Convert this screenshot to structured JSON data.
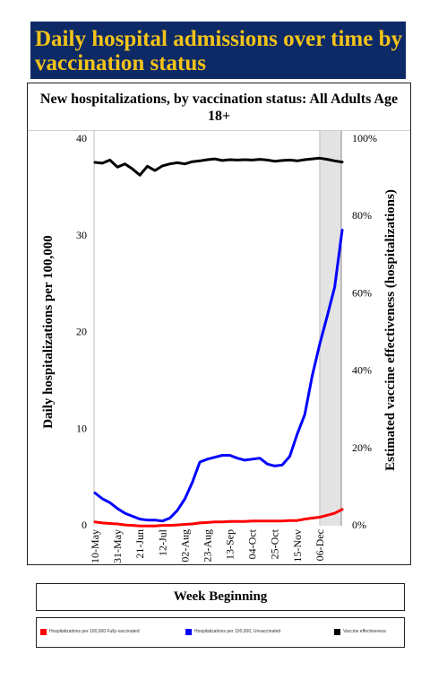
{
  "header": {
    "title": "Daily hospital admissions over time by vaccination status"
  },
  "chart_data": {
    "type": "line",
    "title": "New hospitalizations, by vaccination status: All Adults Age 18+",
    "xlabel": "Week Beginning",
    "ylabel": "Daily hospitalizations per 100,000",
    "ylabel_right": "Estimated vaccine effectiveness (hospitalizations)",
    "ylim": [
      0,
      40
    ],
    "yticks": [
      "0",
      "10",
      "20",
      "30",
      "40"
    ],
    "ylim_right": [
      0,
      100
    ],
    "yticks_right": [
      "0%",
      "20%",
      "40%",
      "60%",
      "80%",
      "100%"
    ],
    "x_tick_labels": [
      "10-May",
      "31-May",
      "21-Jun",
      "12-Jul",
      "02-Aug",
      "23-Aug",
      "13-Sep",
      "04-Oct",
      "25-Oct",
      "15-Nov",
      "06-Dec"
    ],
    "x_weeks": 34,
    "shaded_from_week": 30,
    "series": [
      {
        "name": "Hospitalizations per 100,000  Fully-vaccinated",
        "color": "#ff0000",
        "axis": "left",
        "values": [
          0.2,
          0.1,
          0.05,
          0.0,
          -0.1,
          -0.15,
          -0.2,
          -0.2,
          -0.2,
          -0.15,
          -0.15,
          -0.1,
          -0.05,
          0.0,
          0.1,
          0.15,
          0.2,
          0.2,
          0.25,
          0.25,
          0.25,
          0.3,
          0.3,
          0.3,
          0.3,
          0.3,
          0.35,
          0.35,
          0.5,
          0.6,
          0.7,
          0.9,
          1.1,
          1.5
        ]
      },
      {
        "name": "Hospitalizations per 100,000, Unvaccinated",
        "color": "#0000ff",
        "axis": "left",
        "values": [
          3.2,
          2.6,
          2.2,
          1.6,
          1.1,
          0.8,
          0.5,
          0.4,
          0.4,
          0.3,
          0.6,
          1.4,
          2.6,
          4.3,
          6.4,
          6.7,
          6.9,
          7.1,
          7.1,
          6.8,
          6.6,
          6.7,
          6.8,
          6.2,
          6.0,
          6.1,
          7.0,
          9.3,
          11.3,
          15.3,
          18.6,
          21.5,
          24.5,
          30.4
        ]
      },
      {
        "name": "Vaccine effectiveness",
        "color": "#000000",
        "axis": "right",
        "values": [
          93.5,
          93.3,
          94.1,
          92.3,
          93.1,
          91.8,
          90.2,
          92.5,
          91.4,
          92.6,
          93.1,
          93.4,
          93.1,
          93.7,
          93.9,
          94.2,
          94.4,
          94.0,
          94.2,
          94.1,
          94.2,
          94.1,
          94.3,
          94.1,
          93.8,
          94.0,
          94.1,
          93.9,
          94.2,
          94.4,
          94.6,
          94.3,
          93.9,
          93.6
        ]
      }
    ],
    "legend": [
      {
        "label": "Hospitalizations per 100,000  Fully-vaccinated",
        "color": "#ff0000"
      },
      {
        "label": "Hospitalizations per 100,000, Unvaccinated",
        "color": "#0000ff"
      },
      {
        "label": "Vaccine effectiveness",
        "color": "#000000"
      }
    ],
    "legend_position": "bottom",
    "grid": false
  }
}
